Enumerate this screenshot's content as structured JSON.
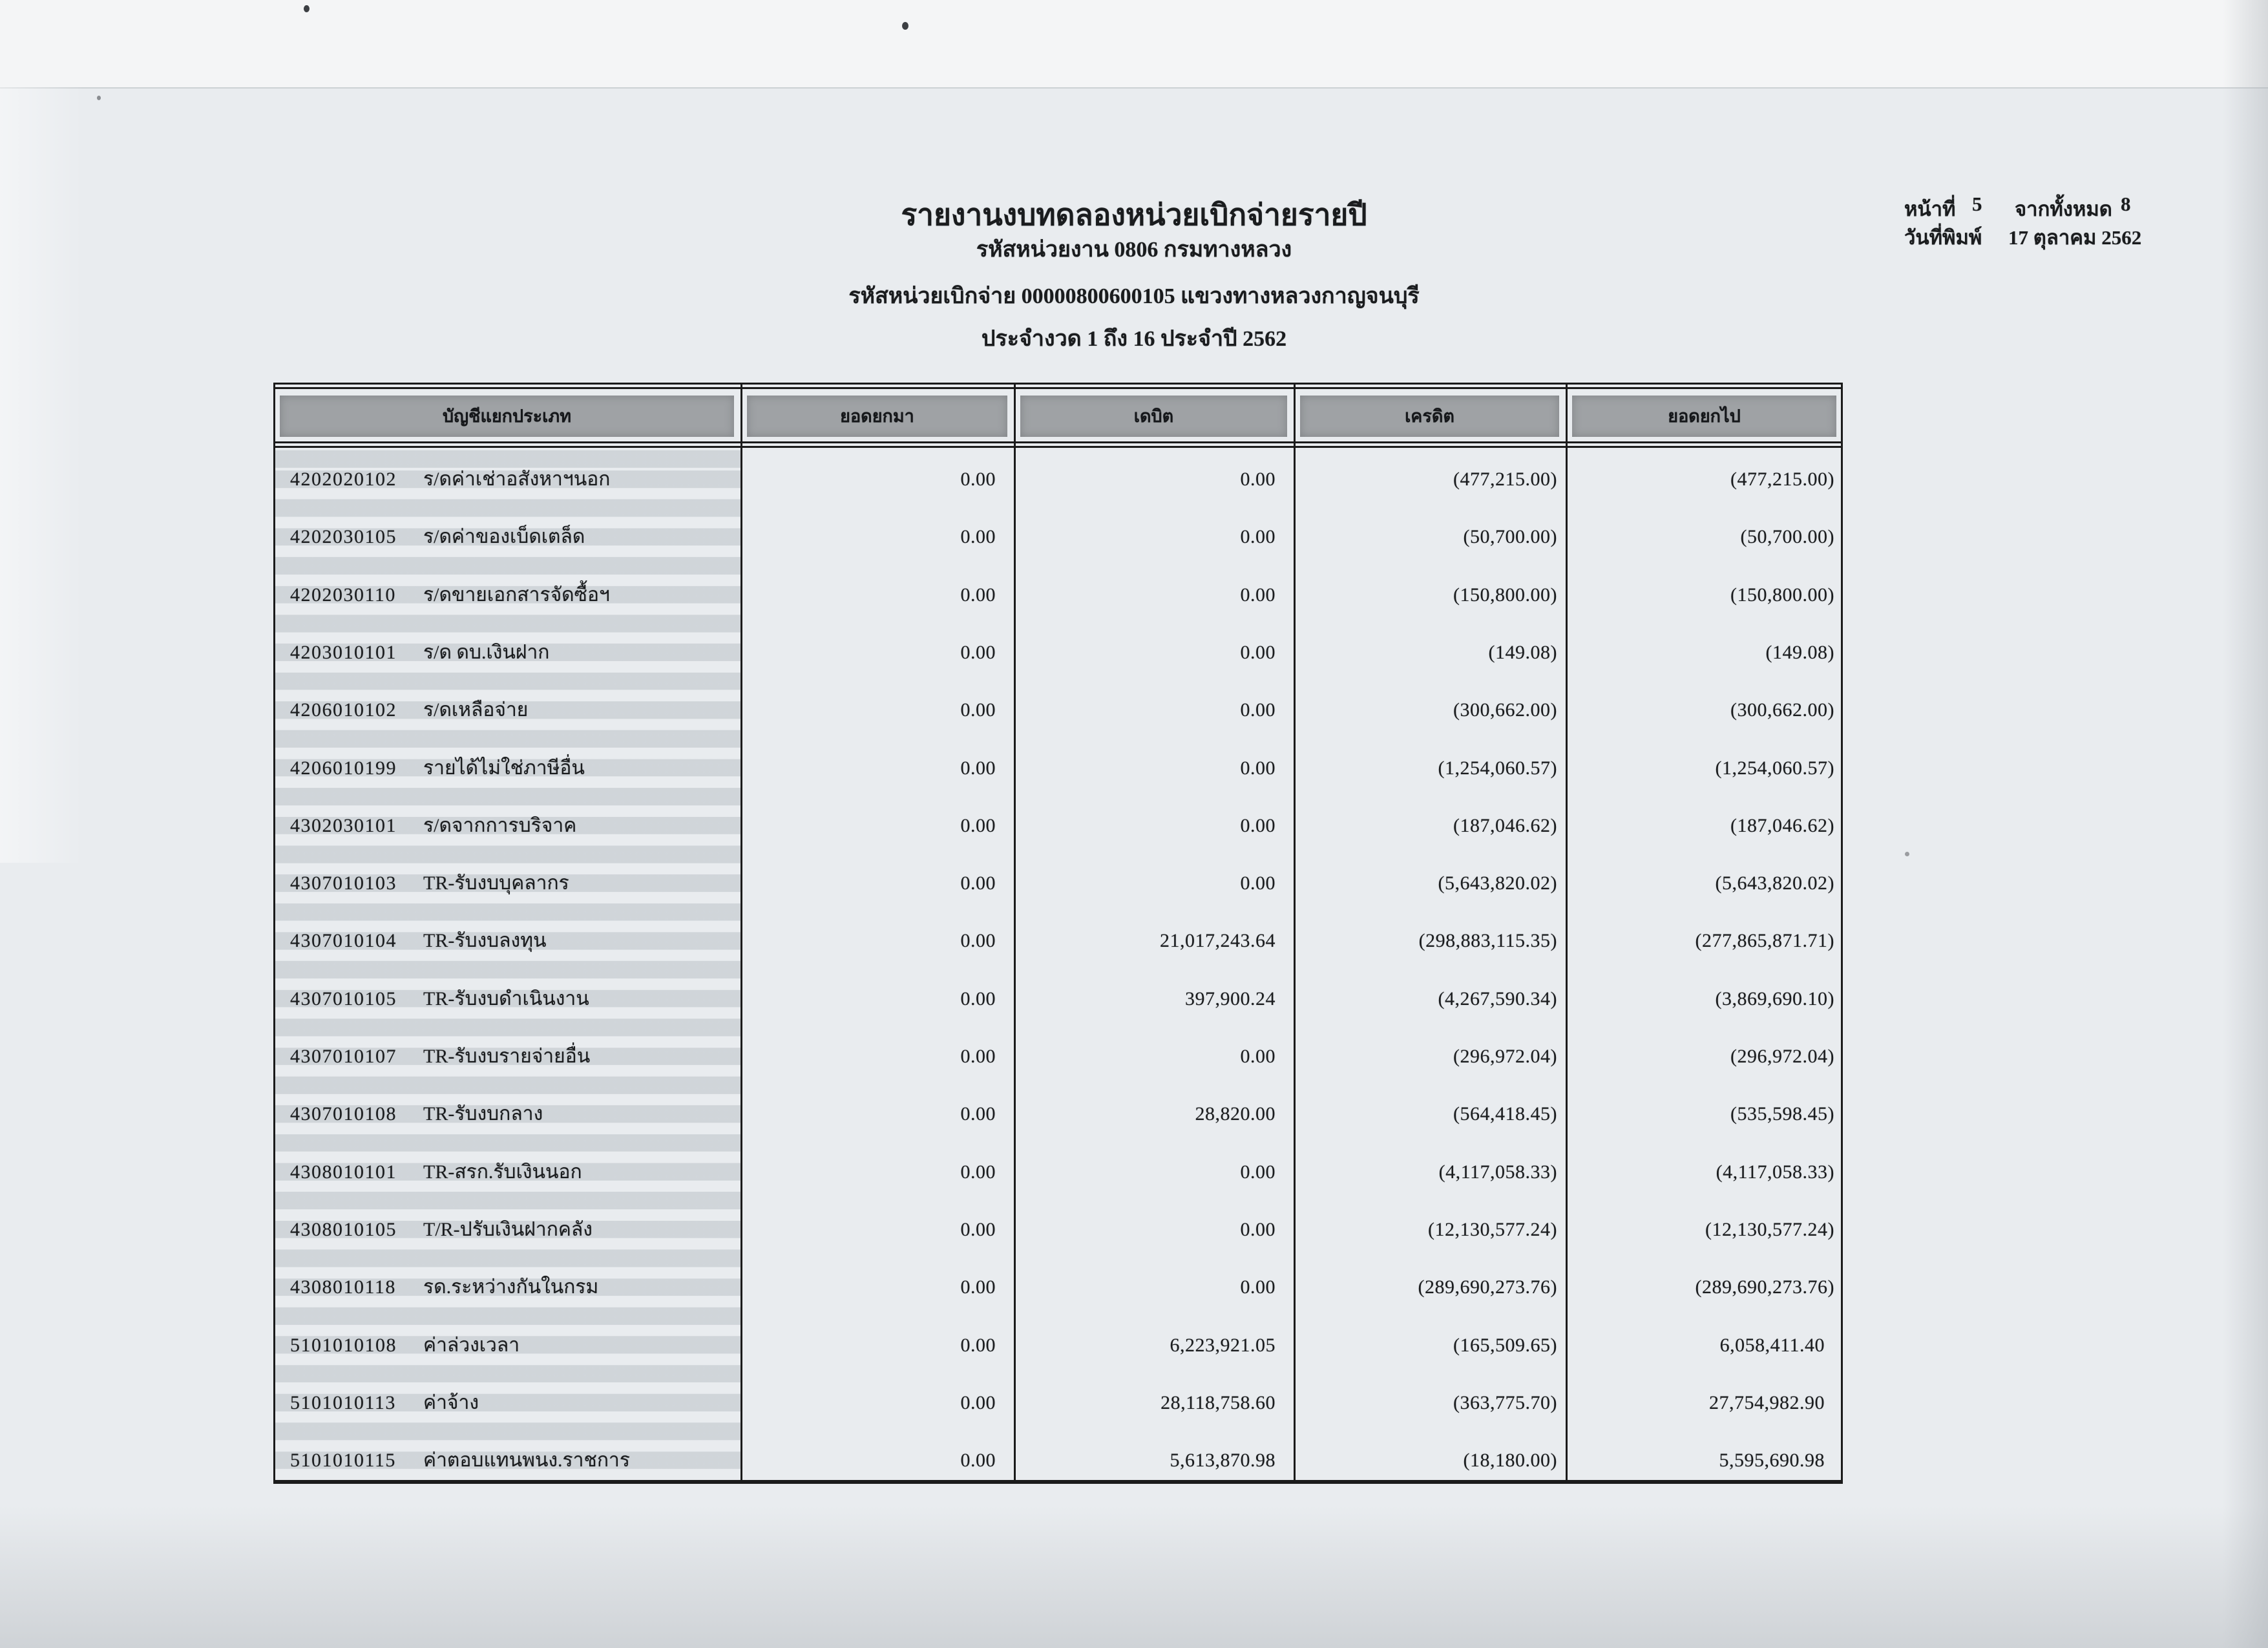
{
  "page": {
    "title": "รายงานงบทดลองหน่วยเบิกจ่ายรายปี",
    "agency_line": "รหัสหน่วยงาน 0806 กรมทางหลวง",
    "unit_line": "รหัสหน่วยเบิกจ่าย 00000800600105 แขวงทางหลวงกาญจนบุรี",
    "period_line": "ประจำงวด 1 ถึง 16 ประจำปี 2562",
    "meta": {
      "page_label": "หน้าที่",
      "page_number": "5",
      "of_label": "จากทั้งหมด",
      "page_total": "8",
      "printed_label": "วันที่พิมพ์",
      "printed_date": "17 ตุลาคม 2562"
    }
  },
  "table": {
    "columns": [
      "บัญชีแยกประเภท",
      "ยอดยกมา",
      "เดบิต",
      "เครดิต",
      "ยอดยกไป"
    ],
    "rows": [
      {
        "code": "4202020102",
        "name": "ร/ดค่าเช่าอสังหาฯนอก",
        "brought_forward": "0.00",
        "debit": "0.00",
        "credit": "(477,215.00)",
        "carried_forward": "(477,215.00)"
      },
      {
        "code": "4202030105",
        "name": "ร/ดค่าของเบ็ดเตล็ด",
        "brought_forward": "0.00",
        "debit": "0.00",
        "credit": "(50,700.00)",
        "carried_forward": "(50,700.00)"
      },
      {
        "code": "4202030110",
        "name": "ร/ดขายเอกสารจัดซื้อฯ",
        "brought_forward": "0.00",
        "debit": "0.00",
        "credit": "(150,800.00)",
        "carried_forward": "(150,800.00)"
      },
      {
        "code": "4203010101",
        "name": "ร/ด ดบ.เงินฝาก",
        "brought_forward": "0.00",
        "debit": "0.00",
        "credit": "(149.08)",
        "carried_forward": "(149.08)"
      },
      {
        "code": "4206010102",
        "name": "ร/ดเหลือจ่าย",
        "brought_forward": "0.00",
        "debit": "0.00",
        "credit": "(300,662.00)",
        "carried_forward": "(300,662.00)"
      },
      {
        "code": "4206010199",
        "name": "รายได้ไม่ใช่ภาษีอื่น",
        "brought_forward": "0.00",
        "debit": "0.00",
        "credit": "(1,254,060.57)",
        "carried_forward": "(1,254,060.57)"
      },
      {
        "code": "4302030101",
        "name": "ร/ดจากการบริจาค",
        "brought_forward": "0.00",
        "debit": "0.00",
        "credit": "(187,046.62)",
        "carried_forward": "(187,046.62)"
      },
      {
        "code": "4307010103",
        "name": "TR-รับงบบุคลากร",
        "brought_forward": "0.00",
        "debit": "0.00",
        "credit": "(5,643,820.02)",
        "carried_forward": "(5,643,820.02)"
      },
      {
        "code": "4307010104",
        "name": "TR-รับงบลงทุน",
        "brought_forward": "0.00",
        "debit": "21,017,243.64",
        "credit": "(298,883,115.35)",
        "carried_forward": "(277,865,871.71)"
      },
      {
        "code": "4307010105",
        "name": "TR-รับงบดำเนินงาน",
        "brought_forward": "0.00",
        "debit": "397,900.24",
        "credit": "(4,267,590.34)",
        "carried_forward": "(3,869,690.10)"
      },
      {
        "code": "4307010107",
        "name": "TR-รับงบรายจ่ายอื่น",
        "brought_forward": "0.00",
        "debit": "0.00",
        "credit": "(296,972.04)",
        "carried_forward": "(296,972.04)"
      },
      {
        "code": "4307010108",
        "name": "TR-รับงบกลาง",
        "brought_forward": "0.00",
        "debit": "28,820.00",
        "credit": "(564,418.45)",
        "carried_forward": "(535,598.45)"
      },
      {
        "code": "4308010101",
        "name": "TR-สรก.รับเงินนอก",
        "brought_forward": "0.00",
        "debit": "0.00",
        "credit": "(4,117,058.33)",
        "carried_forward": "(4,117,058.33)"
      },
      {
        "code": "4308010105",
        "name": "T/R-ปรับเงินฝากคลัง",
        "brought_forward": "0.00",
        "debit": "0.00",
        "credit": "(12,130,577.24)",
        "carried_forward": "(12,130,577.24)"
      },
      {
        "code": "4308010118",
        "name": "รด.ระหว่างกันในกรม",
        "brought_forward": "0.00",
        "debit": "0.00",
        "credit": "(289,690,273.76)",
        "carried_forward": "(289,690,273.76)"
      },
      {
        "code": "5101010108",
        "name": "ค่าล่วงเวลา",
        "brought_forward": "0.00",
        "debit": "6,223,921.05",
        "credit": "(165,509.65)",
        "carried_forward": "6,058,411.40"
      },
      {
        "code": "5101010113",
        "name": "ค่าจ้าง",
        "brought_forward": "0.00",
        "debit": "28,118,758.60",
        "credit": "(363,775.70)",
        "carried_forward": "27,754,982.90"
      },
      {
        "code": "5101010115",
        "name": "ค่าตอบแทนพนง.ราชการ",
        "brought_forward": "0.00",
        "debit": "5,613,870.98",
        "credit": "(18,180.00)",
        "carried_forward": "5,595,690.98"
      }
    ]
  },
  "colors": {
    "paper": "#e9ecef",
    "paper_top": "#f4f5f6",
    "header_fill": "#9fa2a5",
    "stripe": "#c1c7cc",
    "border": "#1b1b1b",
    "ink": "#1a1c1e"
  }
}
